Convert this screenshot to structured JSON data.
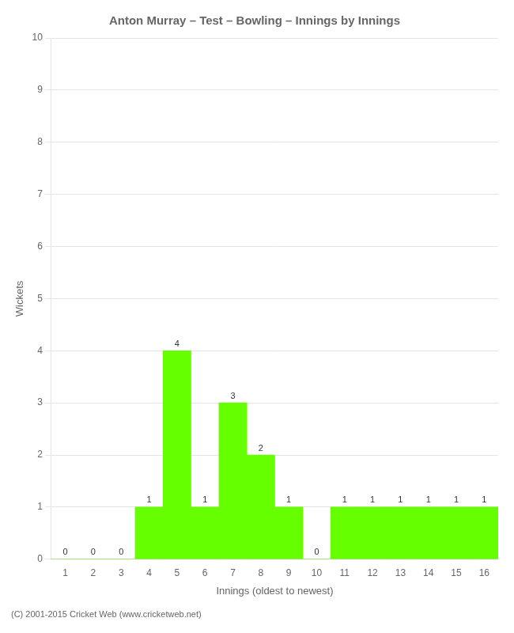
{
  "chart_data": {
    "type": "bar",
    "title": "Anton Murray – Test – Bowling – Innings by Innings",
    "xlabel": "Innings (oldest to newest)",
    "ylabel": "Wickets",
    "categories": [
      "1",
      "2",
      "3",
      "4",
      "5",
      "6",
      "7",
      "8",
      "9",
      "10",
      "11",
      "12",
      "13",
      "14",
      "15",
      "16"
    ],
    "values": [
      0,
      0,
      0,
      1,
      4,
      1,
      3,
      2,
      1,
      0,
      1,
      1,
      1,
      1,
      1,
      1
    ],
    "color": "#66ff00",
    "ylim": [
      0,
      10
    ],
    "yticks": [
      0,
      1,
      2,
      3,
      4,
      5,
      6,
      7,
      8,
      9,
      10
    ],
    "grid": true,
    "data_labels": true,
    "annotations": [
      "(C) 2001-2015 Cricket Web (www.cricketweb.net)"
    ]
  }
}
